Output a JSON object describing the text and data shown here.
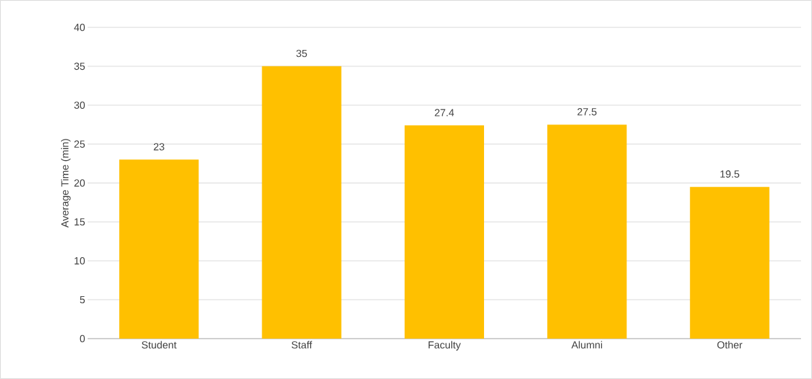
{
  "chart_data": {
    "type": "bar",
    "ylabel": "Average Time (min)",
    "categories": [
      "Student",
      "Staff",
      "Faculty",
      "Alumni",
      "Other"
    ],
    "values": [
      23,
      35,
      27.4,
      27.5,
      19.5
    ],
    "color": "#ffc000",
    "ylim": [
      0,
      40
    ],
    "yticks": [
      0,
      5,
      10,
      15,
      20,
      25,
      30,
      35,
      40
    ],
    "grid": "y",
    "data_labels": true
  }
}
